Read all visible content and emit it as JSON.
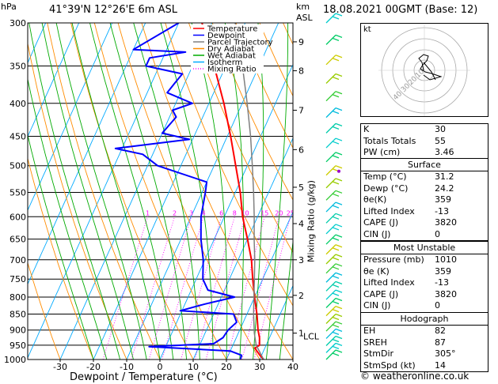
{
  "header": {
    "left_title": "41°39'N  12°26'E  6m  ASL",
    "right_title": "18.08.2021  00GMT  (Base: 12)",
    "hpa_label": "hPa",
    "km_label": "km",
    "asl_label": "ASL",
    "mixing_ratio_axis_label": "Mixing Ratio (g/kg)",
    "x_axis_label": "Dewpoint / Temperature (°C)"
  },
  "legend": [
    {
      "label": "Temperature",
      "color": "#ff0000",
      "style": "solid"
    },
    {
      "label": "Dewpoint",
      "color": "#0000ff",
      "style": "solid"
    },
    {
      "label": "Parcel Trajectory",
      "color": "#808080",
      "style": "solid"
    },
    {
      "label": "Dry Adiabat",
      "color": "#ff8c00",
      "style": "solid"
    },
    {
      "label": "Wet Adiabat",
      "color": "#00aa00",
      "style": "solid"
    },
    {
      "label": "Isotherm",
      "color": "#00aaff",
      "style": "solid"
    },
    {
      "label": "Mixing Ratio",
      "color": "#ff00ff",
      "style": "dotted"
    }
  ],
  "chart_data": {
    "type": "line",
    "title": "41°39'N  12°26'E  6m  ASL",
    "xlabel": "Dewpoint / Temperature (°C)",
    "ylabel": "hPa",
    "x_ticks": [
      -30,
      -20,
      -10,
      0,
      10,
      20,
      30,
      40
    ],
    "y_ticks": [
      300,
      350,
      400,
      450,
      500,
      550,
      600,
      650,
      700,
      750,
      800,
      850,
      900,
      950,
      1000
    ],
    "xlim": [
      -40,
      40
    ],
    "ylim": [
      1000,
      300
    ],
    "y_scale": "log",
    "km_ticks": [
      {
        "p": 321,
        "label": "9"
      },
      {
        "p": 356,
        "label": "8"
      },
      {
        "p": 410,
        "label": "7"
      },
      {
        "p": 472,
        "label": "6"
      },
      {
        "p": 540,
        "label": "5"
      },
      {
        "p": 615,
        "label": "4"
      },
      {
        "p": 700,
        "label": "3"
      },
      {
        "p": 795,
        "label": "2"
      },
      {
        "p": 910,
        "label": "1"
      }
    ],
    "lcl_label": "LCL",
    "lcl_pressure": 910,
    "mixing_ratio_labels": [
      "1",
      "2",
      "3",
      "4",
      "6",
      "8",
      "10",
      "15",
      "20",
      "25"
    ],
    "mixing_ratio_values": [
      1,
      2,
      3,
      4,
      6,
      8,
      10,
      15,
      20,
      25
    ],
    "series": [
      {
        "name": "Temperature",
        "color": "#ff0000",
        "points": [
          {
            "p": 1000,
            "t": 31.2
          },
          {
            "p": 985,
            "t": 29.5
          },
          {
            "p": 970,
            "t": 28.0
          },
          {
            "p": 960,
            "t": 27.0
          },
          {
            "p": 950,
            "t": 28.0
          },
          {
            "p": 925,
            "t": 27.0
          },
          {
            "p": 900,
            "t": 25.5
          },
          {
            "p": 850,
            "t": 23.0
          },
          {
            "p": 800,
            "t": 20.0
          },
          {
            "p": 750,
            "t": 17.0
          },
          {
            "p": 700,
            "t": 14.0
          },
          {
            "p": 650,
            "t": 10.0
          },
          {
            "p": 600,
            "t": 5.5
          },
          {
            "p": 550,
            "t": 1.5
          },
          {
            "p": 500,
            "t": -3.5
          },
          {
            "p": 450,
            "t": -9.0
          },
          {
            "p": 400,
            "t": -15.5
          },
          {
            "p": 350,
            "t": -23.5
          },
          {
            "p": 300,
            "t": -33.0
          }
        ]
      },
      {
        "name": "Dewpoint",
        "color": "#0000ff",
        "points": [
          {
            "p": 1000,
            "t": 24.2
          },
          {
            "p": 985,
            "t": 24.0
          },
          {
            "p": 970,
            "t": 20.0
          },
          {
            "p": 955,
            "t": -5.0
          },
          {
            "p": 945,
            "t": 14.0
          },
          {
            "p": 925,
            "t": 16.0
          },
          {
            "p": 900,
            "t": 16.5
          },
          {
            "p": 875,
            "t": 18.0
          },
          {
            "p": 850,
            "t": 16.0
          },
          {
            "p": 840,
            "t": -0.5
          },
          {
            "p": 820,
            "t": 6.0
          },
          {
            "p": 800,
            "t": 14.0
          },
          {
            "p": 780,
            "t": 5.0
          },
          {
            "p": 750,
            "t": 2.0
          },
          {
            "p": 700,
            "t": -0.5
          },
          {
            "p": 650,
            "t": -4.0
          },
          {
            "p": 600,
            "t": -7.0
          },
          {
            "p": 550,
            "t": -9.0
          },
          {
            "p": 530,
            "t": -10.0
          },
          {
            "p": 500,
            "t": -27.0
          },
          {
            "p": 480,
            "t": -33.0
          },
          {
            "p": 470,
            "t": -42.0
          },
          {
            "p": 455,
            "t": -21.0
          },
          {
            "p": 445,
            "t": -30.0
          },
          {
            "p": 420,
            "t": -28.0
          },
          {
            "p": 410,
            "t": -30.0
          },
          {
            "p": 400,
            "t": -25.0
          },
          {
            "p": 385,
            "t": -34.0
          },
          {
            "p": 372,
            "t": -33.0
          },
          {
            "p": 360,
            "t": -32.0
          },
          {
            "p": 350,
            "t": -44.0
          },
          {
            "p": 340,
            "t": -44.0
          },
          {
            "p": 333,
            "t": -34.0
          },
          {
            "p": 330,
            "t": -50.0
          },
          {
            "p": 300,
            "t": -40.0
          }
        ]
      },
      {
        "name": "Parcel Trajectory",
        "color": "#808080",
        "points": [
          {
            "p": 1000,
            "t": 31.2
          },
          {
            "p": 950,
            "t": 27.0
          },
          {
            "p": 910,
            "t": 24.8
          },
          {
            "p": 850,
            "t": 22.0
          },
          {
            "p": 800,
            "t": 19.8
          },
          {
            "p": 750,
            "t": 17.5
          },
          {
            "p": 700,
            "t": 15.0
          },
          {
            "p": 650,
            "t": 12.0
          },
          {
            "p": 600,
            "t": 9.0
          },
          {
            "p": 550,
            "t": 5.5
          },
          {
            "p": 500,
            "t": 1.5
          },
          {
            "p": 450,
            "t": -3.0
          },
          {
            "p": 400,
            "t": -8.5
          },
          {
            "p": 350,
            "t": -15.0
          },
          {
            "p": 300,
            "t": -23.0
          }
        ]
      }
    ]
  },
  "wind_barb_count": 30,
  "hodograph": {
    "label": "kt",
    "ring_labels": [
      "10",
      "20",
      "30",
      "40"
    ]
  },
  "indices": {
    "rows": [
      {
        "label": "K",
        "value": "30"
      },
      {
        "label": "Totals Totals",
        "value": "55"
      },
      {
        "label": "PW (cm)",
        "value": "3.46"
      }
    ]
  },
  "surface": {
    "header": "Surface",
    "rows": [
      {
        "label": "Temp (°C)",
        "value": "31.2"
      },
      {
        "label": "Dewp (°C)",
        "value": "24.2"
      },
      {
        "label": "θe(K)",
        "value": "359"
      },
      {
        "label": "Lifted Index",
        "value": "-13"
      },
      {
        "label": "CAPE (J)",
        "value": "3820"
      },
      {
        "label": "CIN (J)",
        "value": "0"
      }
    ]
  },
  "most_unstable": {
    "header": "Most Unstable",
    "rows": [
      {
        "label": "Pressure (mb)",
        "value": "1010"
      },
      {
        "label": "θe (K)",
        "value": "359"
      },
      {
        "label": "Lifted Index",
        "value": "-13"
      },
      {
        "label": "CAPE (J)",
        "value": "3820"
      },
      {
        "label": "CIN (J)",
        "value": "0"
      }
    ]
  },
  "hodograph_table": {
    "header": "Hodograph",
    "rows": [
      {
        "label": "EH",
        "value": "82"
      },
      {
        "label": "SREH",
        "value": "87"
      },
      {
        "label": "StmDir",
        "value": "305°"
      },
      {
        "label": "StmSpd (kt)",
        "value": "14"
      }
    ]
  },
  "footer": {
    "text": "© weatheronline.co.uk"
  }
}
